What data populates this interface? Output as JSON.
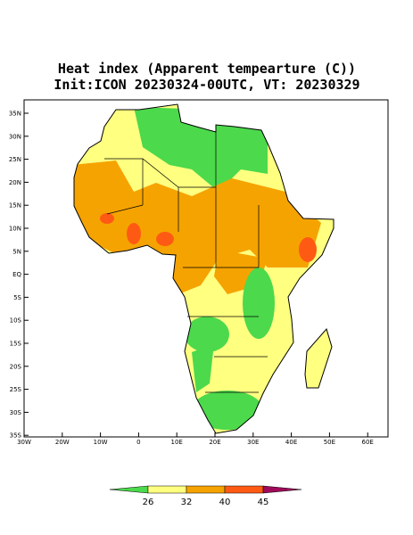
{
  "title": "Heat index (Apparent tempearture (C))",
  "subtitle": "Init:ICON 20230324-00UTC, VT: 20230329",
  "lon_ticks": [
    "30W",
    "20W",
    "10W",
    "0",
    "10E",
    "20E",
    "30E",
    "40E",
    "50E",
    "60E"
  ],
  "lat_ticks": [
    "35N",
    "30N",
    "25N",
    "20N",
    "15N",
    "10N",
    "5N",
    "EQ",
    "5S",
    "10S",
    "15S",
    "20S",
    "25S",
    "30S",
    "35S"
  ],
  "colorbar": {
    "ticks": [
      26,
      32,
      40,
      45
    ],
    "colors": [
      "#4cd94c",
      "#ffff80",
      "#f5a300",
      "#ff5a14",
      "#a00a5a"
    ]
  }
}
